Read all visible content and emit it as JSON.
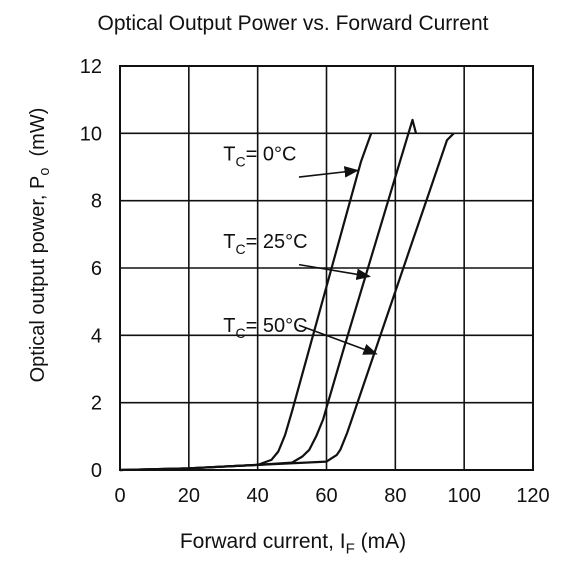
{
  "chart_data": {
    "type": "line",
    "title": "Optical Output Power vs. Forward Current",
    "xlabel": {
      "text": "Forward current, I",
      "sub": "F",
      "unit": " (mA)"
    },
    "ylabel": {
      "text": "Optical output power, P",
      "sub": "o",
      "unit": "  (mW)"
    },
    "xlim": [
      0,
      120
    ],
    "ylim": [
      0,
      12
    ],
    "xticks": [
      "0",
      "20",
      "40",
      "60",
      "80",
      "100",
      "120"
    ],
    "yticks": [
      "0",
      "2",
      "4",
      "6",
      "8",
      "10",
      "12"
    ],
    "grid": true,
    "series": [
      {
        "name": {
          "pre": "T",
          "sub": "C",
          "post": "= 0°C"
        },
        "x": [
          0,
          20,
          40,
          44,
          46,
          47,
          48,
          50,
          55,
          60,
          65,
          70,
          73
        ],
        "y": [
          0,
          0.05,
          0.15,
          0.3,
          0.55,
          0.8,
          1.05,
          1.75,
          3.6,
          5.45,
          7.3,
          9.15,
          10
        ]
      },
      {
        "name": {
          "pre": "T",
          "sub": "C",
          "post": "= 25°C"
        },
        "x": [
          0,
          20,
          40,
          50,
          53,
          55,
          57,
          59,
          60,
          65,
          70,
          75,
          80,
          85,
          86
        ],
        "y": [
          0,
          0.05,
          0.15,
          0.22,
          0.4,
          0.6,
          1.0,
          1.5,
          1.85,
          3.6,
          5.3,
          7.0,
          8.7,
          10.4,
          10
        ]
      },
      {
        "name": {
          "pre": "T",
          "sub": "C",
          "post": "= 50°C"
        },
        "x": [
          0,
          20,
          40,
          60,
          63,
          64,
          65,
          66,
          67,
          70,
          75,
          80,
          85,
          90,
          95,
          97
        ],
        "y": [
          0,
          0.05,
          0.15,
          0.25,
          0.45,
          0.6,
          0.85,
          1.1,
          1.4,
          2.3,
          3.8,
          5.3,
          6.8,
          8.3,
          9.8,
          10
        ]
      }
    ],
    "annotations": [
      {
        "series": 0,
        "text_x": 30,
        "text_y": 9.2,
        "arrow_from": [
          52,
          8.7
        ],
        "arrow_to": [
          69,
          8.9
        ]
      },
      {
        "series": 1,
        "text_x": 30,
        "text_y": 6.6,
        "arrow_from": [
          52,
          6.1
        ],
        "arrow_to": [
          72.5,
          5.75
        ]
      },
      {
        "series": 2,
        "text_x": 30,
        "text_y": 4.1,
        "arrow_from": [
          52,
          4.3
        ],
        "arrow_to": [
          74.5,
          3.45
        ]
      }
    ]
  }
}
